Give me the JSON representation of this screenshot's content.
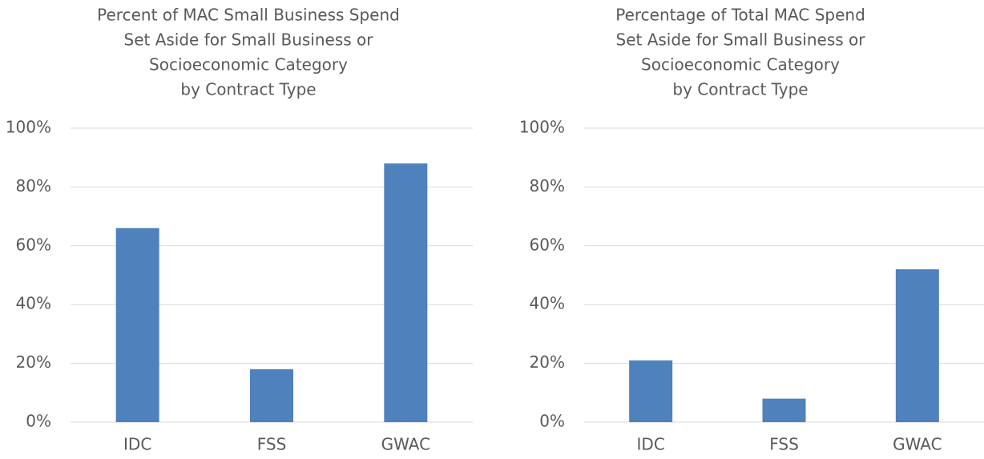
{
  "chart_data": [
    {
      "type": "bar",
      "title": [
        "Percent of MAC Small Business Spend",
        "Set Aside for Small Business or",
        "Socioeconomic Category",
        "by Contract Type"
      ],
      "categories": [
        "IDC",
        "FSS",
        "GWAC"
      ],
      "values": [
        66,
        18,
        88
      ],
      "color": "#4f81bd",
      "ylim": [
        0,
        100
      ],
      "yticks": [
        {
          "value": 0,
          "label": "0%"
        },
        {
          "value": 20,
          "label": "20%"
        },
        {
          "value": 40,
          "label": "40%"
        },
        {
          "value": 60,
          "label": "60%"
        },
        {
          "value": 80,
          "label": "80%"
        },
        {
          "value": 100,
          "label": "100%"
        }
      ],
      "grid": true
    },
    {
      "type": "bar",
      "title": [
        "Percentage of Total MAC Spend",
        "Set Aside for Small Business or",
        "Socioeconomic Category",
        "by Contract Type"
      ],
      "categories": [
        "IDC",
        "FSS",
        "GWAC"
      ],
      "values": [
        21,
        8,
        52
      ],
      "color": "#4f81bd",
      "ylim": [
        0,
        100
      ],
      "yticks": [
        {
          "value": 0,
          "label": "0%"
        },
        {
          "value": 20,
          "label": "20%"
        },
        {
          "value": 40,
          "label": "40%"
        },
        {
          "value": 60,
          "label": "60%"
        },
        {
          "value": 80,
          "label": "80%"
        },
        {
          "value": 100,
          "label": "100%"
        }
      ],
      "grid": true
    }
  ]
}
